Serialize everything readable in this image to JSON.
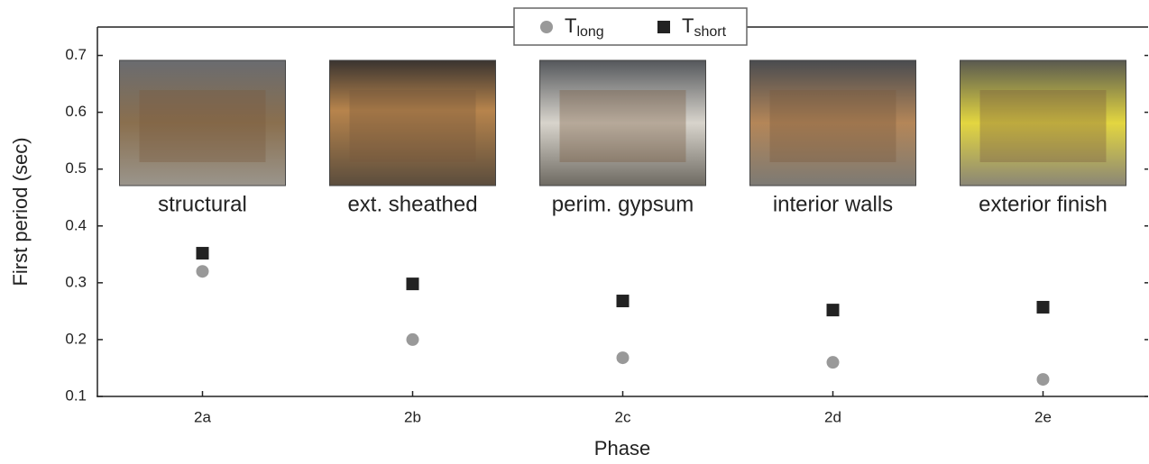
{
  "chart_data": {
    "type": "scatter",
    "x_label": "Phase",
    "y_label": "First period (sec)",
    "categories": [
      "2a",
      "2b",
      "2c",
      "2d",
      "2e"
    ],
    "photo_labels": [
      "structural",
      "ext. sheathed",
      "perim. gypsum",
      "interior walls",
      "exterior finish"
    ],
    "series": [
      {
        "name": "T",
        "name_sub": "long",
        "color": "#999999",
        "marker": "circle",
        "values": [
          0.32,
          0.2,
          0.168,
          0.16,
          0.13
        ]
      },
      {
        "name": "T",
        "name_sub": "short",
        "color": "#222222",
        "marker": "square",
        "values": [
          0.352,
          0.298,
          0.268,
          0.252,
          0.257
        ]
      }
    ],
    "ylim": [
      0.1,
      0.75
    ],
    "yticks": [
      0.1,
      0.2,
      0.3,
      0.4,
      0.5,
      0.6,
      0.7
    ],
    "legend": "top"
  }
}
